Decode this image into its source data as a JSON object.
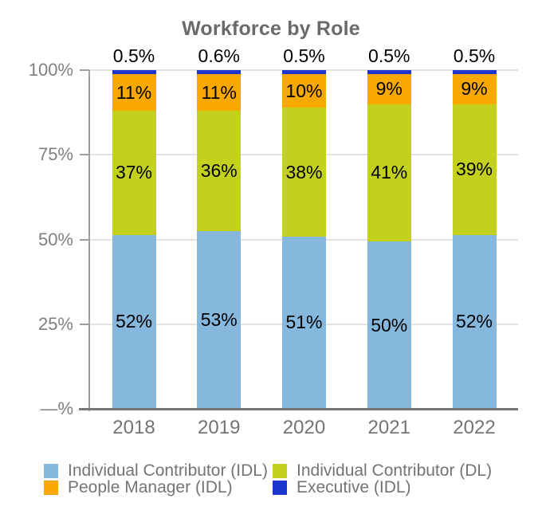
{
  "chart_data": {
    "type": "bar",
    "stacked": true,
    "title": "Workforce by Role",
    "categories": [
      "2018",
      "2019",
      "2020",
      "2021",
      "2022"
    ],
    "series": [
      {
        "name": "Individual Contributor (IDL)",
        "color": "#86B7DC",
        "values": [
          52,
          53,
          51,
          50,
          52
        ],
        "labels": [
          "52%",
          "53%",
          "51%",
          "50%",
          "52%"
        ],
        "label_placement": "inside"
      },
      {
        "name": "Individual Contributor (DL)",
        "color": "#C4D01E",
        "values": [
          37,
          36,
          38,
          41,
          39
        ],
        "labels": [
          "37%",
          "36%",
          "38%",
          "41%",
          "39%"
        ],
        "label_placement": "inside"
      },
      {
        "name": "People Manager (IDL)",
        "color": "#F9A800",
        "values": [
          11,
          11,
          10,
          9,
          9
        ],
        "labels": [
          "11%",
          "11%",
          "10%",
          "9%",
          "9%"
        ],
        "label_placement": "inside"
      },
      {
        "name": "Executive (IDL)",
        "color": "#1C36CF",
        "values": [
          0.5,
          0.6,
          0.5,
          0.5,
          0.5
        ],
        "labels": [
          "0.5%",
          "0.6%",
          "0.5%",
          "0.5%",
          "0.5%"
        ],
        "label_placement": "above"
      }
    ],
    "y_axis": {
      "ticks": [
        {
          "label": "100%",
          "value": 100
        },
        {
          "label": "75%",
          "value": 75
        },
        {
          "label": "50%",
          "value": 50
        },
        {
          "label": "25%",
          "value": 25
        },
        {
          "label": "—%",
          "value": 0
        }
      ]
    },
    "ylim": [
      0,
      100
    ],
    "grid": true,
    "legend_position": "bottom"
  }
}
